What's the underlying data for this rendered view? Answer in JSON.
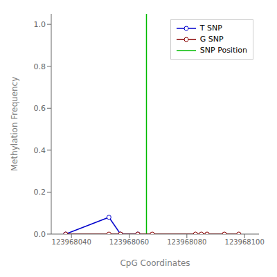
{
  "chart_data": {
    "type": "line",
    "xlabel": "CpG Coordinates",
    "ylabel": "Methylation Frequency",
    "xlim": [
      123968033,
      123968105
    ],
    "ylim": [
      0.0,
      1.05
    ],
    "xticks": [
      123968040,
      123968060,
      123968080,
      123968100
    ],
    "yticks": [
      {
        "value": 0.0,
        "label": "0.0"
      },
      0.2,
      0.4,
      0.6,
      0.8,
      {
        "value": 1.0,
        "label": "1.0"
      }
    ],
    "grid": false,
    "legend": "upper right",
    "series": [
      {
        "name": "T SNP",
        "color": "#0000cc",
        "marker": "circle",
        "x": [
          123968038,
          123968053,
          123968057,
          123968063
        ],
        "values": [
          0.0,
          0.08,
          0.0,
          0.0
        ]
      },
      {
        "name": "G SNP",
        "color": "#880000",
        "marker": "circle",
        "x": [
          123968038,
          123968053,
          123968057,
          123968063,
          123968068,
          123968083,
          123968085,
          123968087,
          123968093,
          123968098
        ],
        "values": [
          0.0,
          0.0,
          0.0,
          0.0,
          0.0,
          0.0,
          0.0,
          0.0,
          0.0,
          0.0
        ]
      },
      {
        "name": "SNP Position",
        "type": "vline",
        "color": "#00bb00",
        "x": 123968066
      }
    ]
  }
}
